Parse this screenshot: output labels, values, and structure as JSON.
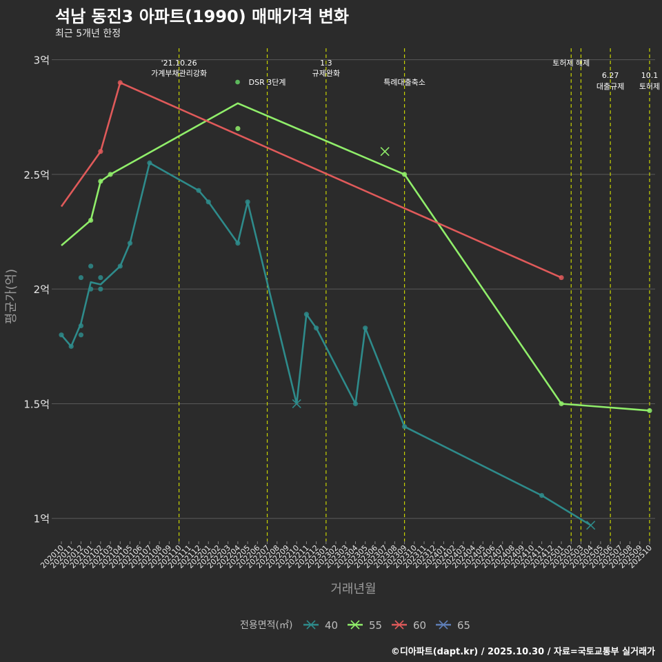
{
  "header": {
    "title": "석남 동진3 아파트(1990) 매매가격 변화",
    "subtitle": "최근 5개년 한정"
  },
  "caption": "©디아파트(dapt.kr) / 2025.10.30 / 자료=국토교통부 실거래가",
  "colors": {
    "background": "#2b2b2b",
    "grid": "#5a5a5a",
    "event_line": "#c8d400",
    "s40": "#2e8b8b",
    "s55": "#90ee6a",
    "s60": "#e05a5a",
    "s65": "#5f7fb8"
  },
  "chart_data": {
    "type": "line",
    "title": "석남 동진3 아파트(1990) 매매가격 변화",
    "xlabel": "거래년월",
    "ylabel": "평균가(억)",
    "ylim": [
      0.9,
      3.05
    ],
    "yticks": [
      1,
      1.5,
      2,
      2.5,
      3
    ],
    "ytick_labels": [
      "1억",
      "1.5억",
      "2억",
      "2.5억",
      "3억"
    ],
    "categories": [
      "202010",
      "202011",
      "202012",
      "202101",
      "202102",
      "202103",
      "202104",
      "202105",
      "202106",
      "202107",
      "202108",
      "202109",
      "202110",
      "202111",
      "202112",
      "202201",
      "202202",
      "202203",
      "202204",
      "202205",
      "202206",
      "202207",
      "202208",
      "202209",
      "202210",
      "202211",
      "202212",
      "202301",
      "202302",
      "202303",
      "202304",
      "202305",
      "202306",
      "202307",
      "202308",
      "202309",
      "202310",
      "202311",
      "202312",
      "202401",
      "202402",
      "202403",
      "202404",
      "202405",
      "202406",
      "202407",
      "202408",
      "202409",
      "202410",
      "202411",
      "202412",
      "202501",
      "202502",
      "202503",
      "202504",
      "202505",
      "202506",
      "202507",
      "202508",
      "202509",
      "202510"
    ],
    "legend_title": "전용면적(㎡)",
    "series": [
      {
        "name": "40",
        "color": "#2e8b8b",
        "line": [
          [
            "202010",
            1.8
          ],
          [
            "202011",
            1.75
          ],
          [
            "202012",
            1.85
          ],
          [
            "202101",
            2.03
          ],
          [
            "202102",
            2.02
          ],
          [
            "202104",
            2.1
          ],
          [
            "202105",
            2.2
          ],
          [
            "202107",
            2.55
          ],
          [
            "202112",
            2.43
          ],
          [
            "202201",
            2.38
          ],
          [
            "202204",
            2.2
          ],
          [
            "202205",
            2.38
          ],
          [
            "202210",
            1.5
          ],
          [
            "202211",
            1.89
          ],
          [
            "202212",
            1.83
          ],
          [
            "202304",
            1.5
          ],
          [
            "202305",
            1.83
          ],
          [
            "202309",
            1.4
          ],
          [
            "202411",
            1.1
          ],
          [
            "202504",
            0.97
          ]
        ],
        "points": [
          [
            "202010",
            1.8
          ],
          [
            "202011",
            1.75
          ],
          [
            "202012",
            1.84
          ],
          [
            "202012",
            1.8
          ],
          [
            "202012",
            2.05
          ],
          [
            "202101",
            2.0
          ],
          [
            "202101",
            2.1
          ],
          [
            "202102",
            2.05
          ],
          [
            "202102",
            2.0
          ],
          [
            "202104",
            2.1
          ],
          [
            "202105",
            2.2
          ],
          [
            "202107",
            2.55
          ],
          [
            "202112",
            2.43
          ],
          [
            "202201",
            2.38
          ],
          [
            "202204",
            2.2
          ],
          [
            "202205",
            2.38
          ],
          [
            "202211",
            1.89
          ],
          [
            "202212",
            1.83
          ],
          [
            "202304",
            1.5
          ],
          [
            "202305",
            1.83
          ],
          [
            "202309",
            1.4
          ],
          [
            "202411",
            1.1
          ]
        ],
        "x_marks": [
          [
            "202210",
            1.5
          ],
          [
            "202504",
            0.97
          ]
        ]
      },
      {
        "name": "55",
        "color": "#90ee6a",
        "line": [
          [
            "202010",
            2.19
          ],
          [
            "202101",
            2.3
          ],
          [
            "202102",
            2.47
          ],
          [
            "202103",
            2.5
          ],
          [
            "202204",
            2.81
          ],
          [
            "202309",
            2.5
          ],
          [
            "202501",
            1.5
          ],
          [
            "202510",
            1.47
          ]
        ],
        "points": [
          [
            "202101",
            2.3
          ],
          [
            "202102",
            2.47
          ],
          [
            "202103",
            2.5
          ],
          [
            "202204",
            2.7
          ],
          [
            "202309",
            2.5
          ],
          [
            "202501",
            1.5
          ],
          [
            "202510",
            1.47
          ]
        ],
        "x_marks": [
          [
            "202307",
            2.6
          ]
        ]
      },
      {
        "name": "60",
        "color": "#e05a5a",
        "line": [
          [
            "202010",
            2.36
          ],
          [
            "202102",
            2.6
          ],
          [
            "202104",
            2.9
          ],
          [
            "202501",
            2.05
          ]
        ],
        "points": [
          [
            "202102",
            2.6
          ],
          [
            "202104",
            2.9
          ],
          [
            "202501",
            2.05
          ]
        ],
        "x_marks": []
      },
      {
        "name": "65",
        "color": "#5f7fb8",
        "line": [],
        "points": [],
        "x_marks": []
      }
    ],
    "events": [
      {
        "x": "202110",
        "lines": [
          "'21.10.26",
          "가계부채관리강화"
        ],
        "row": 0
      },
      {
        "x": "202207",
        "lines": [
          "DSR 3단계"
        ],
        "row": 1
      },
      {
        "x": "202301",
        "lines": [
          "1.3",
          "규제완화"
        ],
        "row": 0
      },
      {
        "x": "202309",
        "lines": [
          "특례대출축소"
        ],
        "row": 1
      },
      {
        "x": "202502",
        "lines": [
          "토허제 해제"
        ],
        "row": 0
      },
      {
        "x": "202503",
        "lines": [],
        "row": 0
      },
      {
        "x": "202506",
        "lines": [
          "6.27",
          "대출규제"
        ],
        "row": 2
      },
      {
        "x": "202510",
        "lines": [
          "10.1",
          "토허제"
        ],
        "row": 2
      }
    ]
  }
}
